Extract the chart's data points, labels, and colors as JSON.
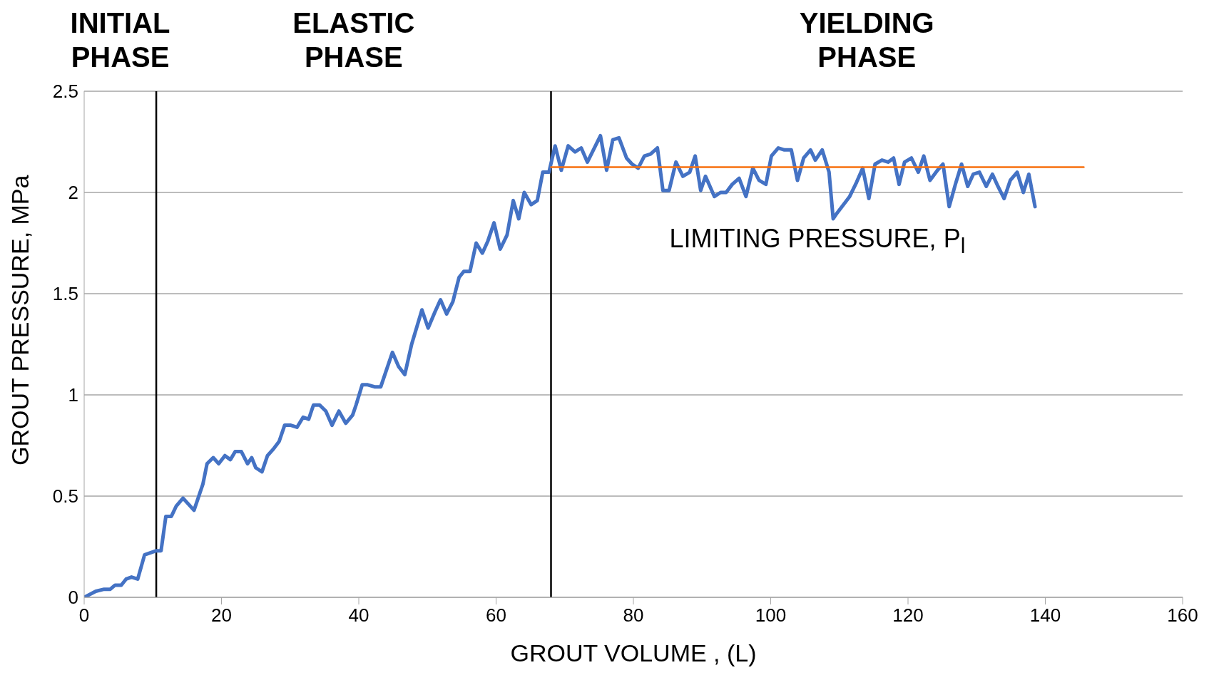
{
  "chart_data": {
    "type": "line",
    "xlabel": "GROUT VOLUME , (L)",
    "ylabel": "GROUT PRESSURE, MPa",
    "xlim": [
      0,
      160
    ],
    "xticks": [
      0,
      20,
      40,
      60,
      80,
      100,
      120,
      140,
      160
    ],
    "ylim": [
      0,
      2.5
    ],
    "yticks": [
      0,
      0.5,
      1,
      1.5,
      2,
      2.5
    ],
    "grid": "y",
    "legend": false,
    "marker": "none",
    "line_style": "solid",
    "series": [
      {
        "color": "#4472c4",
        "x": [
          0,
          1.7,
          2.9,
          3.8,
          4.5,
          5.4,
          6.1,
          6.9,
          7.8,
          8.8,
          10.5,
          11.2,
          11.9,
          12.7,
          13.4,
          14.4,
          15.2,
          16.0,
          16.8,
          17.3,
          17.9,
          18.8,
          19.6,
          20.5,
          21.3,
          22.0,
          22.9,
          23.8,
          24.4,
          25.0,
          25.9,
          26.7,
          27.5,
          28.4,
          29.2,
          30.1,
          31.0,
          31.9,
          32.7,
          33.4,
          34.3,
          35.2,
          36.1,
          37.1,
          38.1,
          39.1,
          39.6,
          40.5,
          41.3,
          42.3,
          43.2,
          44.0,
          44.9,
          45.8,
          46.7,
          47.7,
          49.2,
          50.1,
          51.1,
          51.9,
          52.8,
          53.7,
          54.6,
          55.3,
          56.2,
          57.1,
          58.0,
          58.8,
          59.7,
          60.6,
          61.6,
          62.5,
          63.3,
          64.1,
          65.1,
          66.0,
          66.8,
          67.7,
          68.6,
          69.5,
          70.5,
          71.5,
          72.4,
          73.3,
          75.2,
          76.1,
          77.0,
          77.9,
          79.0,
          79.8,
          80.7,
          81.6,
          82.5,
          83.5,
          84.3,
          85.2,
          86.2,
          87.2,
          88.2,
          89.0,
          89.8,
          90.5,
          91.8,
          92.7,
          93.5,
          94.4,
          95.4,
          96.4,
          97.4,
          98.3,
          99.3,
          100.1,
          101.1,
          102.0,
          103.0,
          103.9,
          104.8,
          105.8,
          106.5,
          107.5,
          108.5,
          109.1,
          109.7,
          111.5,
          112.5,
          113.4,
          114.3,
          115.2,
          116.2,
          117.1,
          117.9,
          118.7,
          119.5,
          120.5,
          121.5,
          122.3,
          123.2,
          124.3,
          125.1,
          126.0,
          126.9,
          127.8,
          128.7,
          129.5,
          130.4,
          131.4,
          132.3,
          133.1,
          134.0,
          134.9,
          135.9,
          136.8,
          137.6,
          138.5
        ],
        "values": [
          0,
          0.03,
          0.04,
          0.04,
          0.06,
          0.06,
          0.09,
          0.1,
          0.09,
          0.21,
          0.23,
          0.23,
          0.4,
          0.4,
          0.45,
          0.49,
          0.46,
          0.43,
          0.51,
          0.56,
          0.66,
          0.69,
          0.66,
          0.7,
          0.68,
          0.72,
          0.72,
          0.66,
          0.69,
          0.64,
          0.62,
          0.7,
          0.73,
          0.77,
          0.85,
          0.85,
          0.84,
          0.89,
          0.88,
          0.95,
          0.95,
          0.92,
          0.85,
          0.92,
          0.86,
          0.9,
          0.95,
          1.05,
          1.05,
          1.04,
          1.04,
          1.12,
          1.21,
          1.14,
          1.1,
          1.25,
          1.42,
          1.33,
          1.41,
          1.47,
          1.4,
          1.46,
          1.58,
          1.61,
          1.61,
          1.75,
          1.7,
          1.76,
          1.85,
          1.72,
          1.79,
          1.96,
          1.87,
          2.0,
          1.94,
          1.96,
          2.1,
          2.1,
          2.23,
          2.11,
          2.23,
          2.2,
          2.22,
          2.15,
          2.28,
          2.11,
          2.26,
          2.27,
          2.17,
          2.14,
          2.12,
          2.18,
          2.19,
          2.22,
          2.01,
          2.01,
          2.15,
          2.08,
          2.1,
          2.18,
          2.01,
          2.08,
          1.98,
          2.0,
          2.0,
          2.04,
          2.07,
          1.98,
          2.12,
          2.06,
          2.04,
          2.18,
          2.22,
          2.21,
          2.21,
          2.06,
          2.17,
          2.21,
          2.16,
          2.21,
          2.1,
          1.87,
          1.9,
          1.98,
          2.05,
          2.12,
          1.97,
          2.14,
          2.16,
          2.15,
          2.17,
          2.04,
          2.15,
          2.17,
          2.1,
          2.18,
          2.06,
          2.11,
          2.14,
          1.93,
          2.04,
          2.14,
          2.03,
          2.09,
          2.1,
          2.03,
          2.09,
          2.03,
          1.97,
          2.06,
          2.1,
          2.0,
          2.09,
          1.93
        ]
      },
      {
        "color": "#f7700f",
        "x": [
          68,
          145.6
        ],
        "values": [
          2.125,
          2.125
        ]
      }
    ],
    "ref_lines": [
      {
        "axis": "x",
        "value": 10.5,
        "color": "#000000"
      },
      {
        "axis": "x",
        "value": 68,
        "color": "#000000"
      }
    ],
    "annotations": [
      "INITIAL\nPHASE",
      "ELASTIC\nPHASE",
      "YIELDING\nPHASE",
      "LIMITING PRESSURE, P$_{l}$"
    ]
  }
}
